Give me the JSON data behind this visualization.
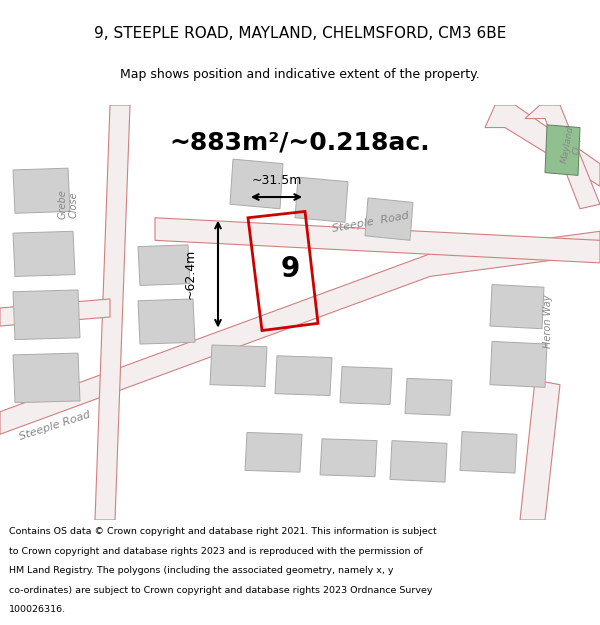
{
  "title_line1": "9, STEEPLE ROAD, MAYLAND, CHELMSFORD, CM3 6BE",
  "title_line2": "Map shows position and indicative extent of the property.",
  "area_label": "~883m²/~0.218ac.",
  "dim_horizontal": "~31.5m",
  "dim_vertical": "~62.4m",
  "property_number": "9",
  "footer_lines": [
    "Contains OS data © Crown copyright and database right 2021. This information is subject",
    "to Crown copyright and database rights 2023 and is reproduced with the permission of",
    "HM Land Registry. The polygons (including the associated geometry, namely x, y",
    "co-ordinates) are subject to Crown copyright and database rights 2023 Ordnance Survey",
    "100026316."
  ],
  "map_bg": "#f0eeee",
  "road_fill": "#f5eeee",
  "road_edge": "#d08080",
  "building_fill": "#d0d0d0",
  "building_edge": "#aaaaaa",
  "highlight_edge": "#cc0000",
  "green_fill": "#90c090",
  "green_edge": "#608060",
  "text_gray": "#888888",
  "title_bg": "#ffffff",
  "footer_bg": "#ffffff"
}
